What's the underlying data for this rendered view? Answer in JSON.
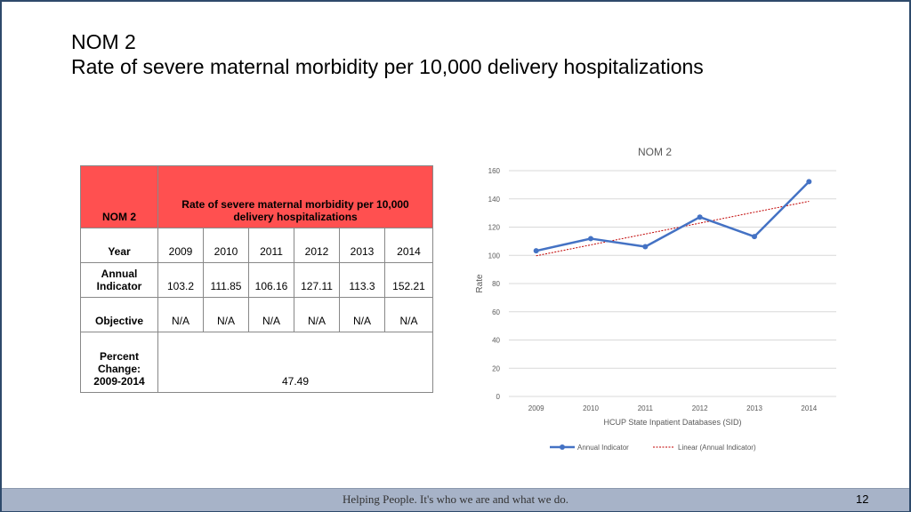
{
  "slide": {
    "title_line1": "NOM 2",
    "title_line2": "Rate of severe maternal morbidity per 10,000 delivery hospitalizations",
    "footer_text": "Helping People.  It's who we are and what we do.",
    "page_number": "12"
  },
  "table": {
    "header_label": "NOM 2",
    "header_title": "Rate of severe maternal morbidity per 10,000 delivery hospitalizations",
    "year_label": "Year",
    "years": [
      "2009",
      "2010",
      "2011",
      "2012",
      "2013",
      "2014"
    ],
    "annual_label": "Annual Indicator",
    "annual_values": [
      "103.2",
      "111.85",
      "106.16",
      "127.11",
      "113.3",
      "152.21"
    ],
    "objective_label": "Objective",
    "objective_values": [
      "N/A",
      "N/A",
      "N/A",
      "N/A",
      "N/A",
      "N/A"
    ],
    "percent_label": "Percent Change: 2009-2014",
    "percent_value": "47.49"
  },
  "chart_data": {
    "type": "line",
    "title": "NOM 2",
    "xlabel": "HCUP State Inpatient Databases (SID)",
    "ylabel": "Rate",
    "categories": [
      "2009",
      "2010",
      "2011",
      "2012",
      "2013",
      "2014"
    ],
    "series": [
      {
        "name": "Annual Indicator",
        "values": [
          103.2,
          111.85,
          106.16,
          127.11,
          113.3,
          152.21
        ],
        "color": "#4472c4"
      },
      {
        "name": "Linear (Annual Indicator)",
        "type": "trendline",
        "color": "#c00000"
      }
    ],
    "ylim": [
      0,
      160
    ],
    "yticks": [
      0,
      20,
      40,
      60,
      80,
      100,
      120,
      140,
      160
    ],
    "grid": true,
    "legend": "bottom"
  }
}
